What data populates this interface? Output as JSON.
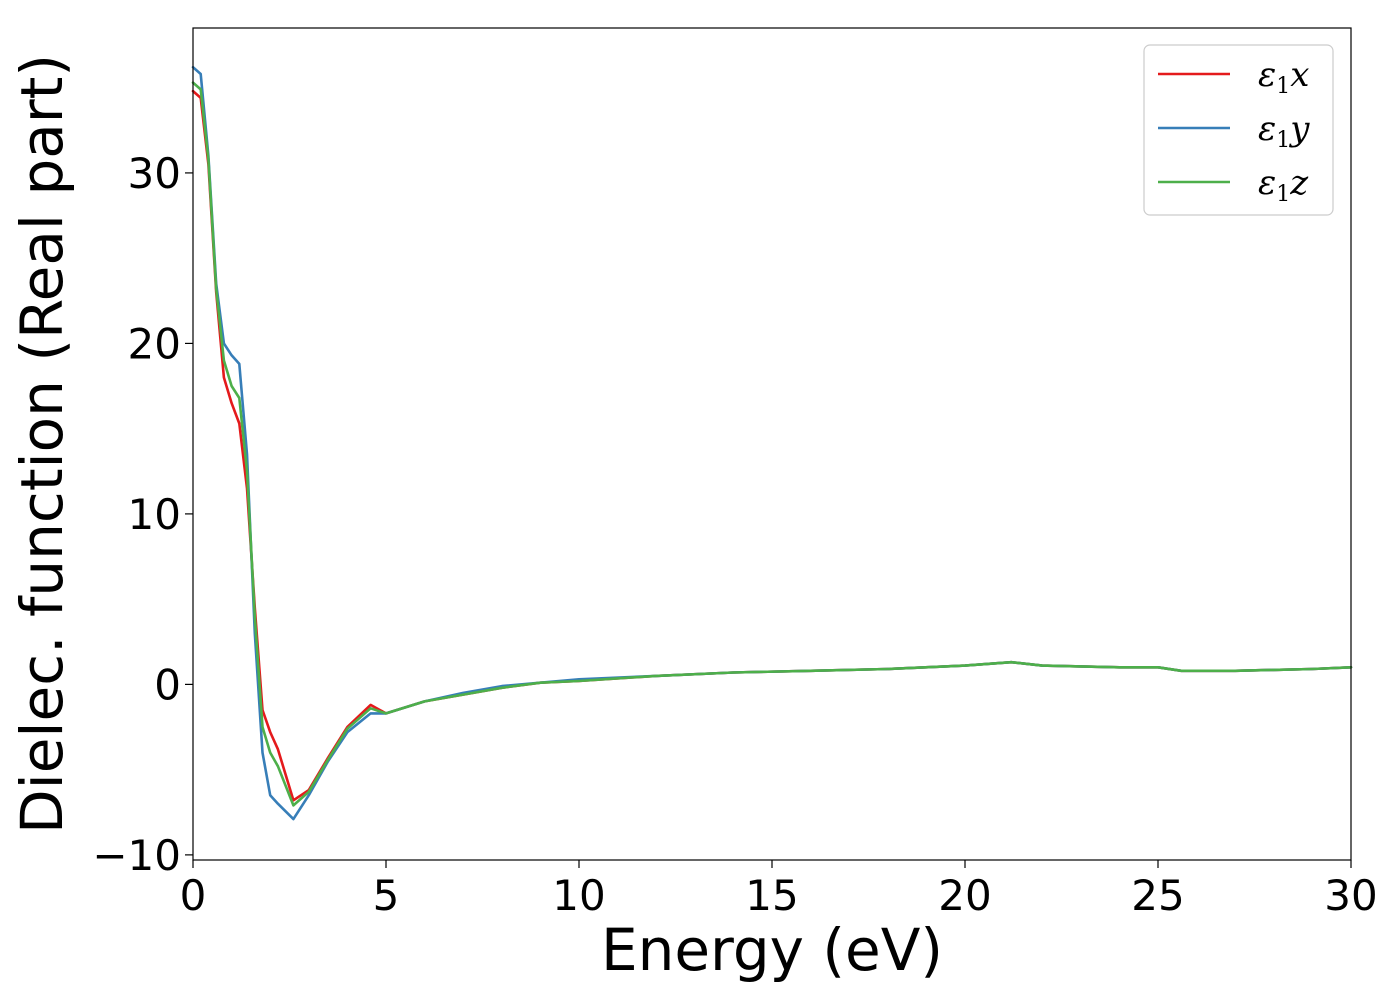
{
  "chart_data": {
    "type": "line",
    "xlabel": "Energy (eV)",
    "ylabel": "Dielec. function (Real part)",
    "xlim": [
      0,
      30
    ],
    "ylim": [
      -10.3,
      38.5
    ],
    "xticks": [
      0,
      5,
      10,
      15,
      20,
      25,
      30
    ],
    "yticks": [
      -10,
      0,
      10,
      20,
      30
    ],
    "xtick_labels": [
      "0",
      "5",
      "10",
      "15",
      "20",
      "25",
      "30"
    ],
    "ytick_labels": [
      "−10",
      "0",
      "10",
      "20",
      "30"
    ],
    "grid": false,
    "legend_position": "top-right",
    "series": [
      {
        "name": "ε₁x",
        "legend_base": "ε",
        "legend_sub": "1",
        "legend_var": "x",
        "color": "#e41a1c",
        "x": [
          0,
          0.2,
          0.4,
          0.6,
          0.8,
          1.0,
          1.2,
          1.4,
          1.6,
          1.8,
          2.0,
          2.2,
          2.6,
          3.0,
          3.5,
          4.0,
          4.6,
          5.0,
          6,
          7,
          8,
          9,
          10,
          12,
          14,
          16,
          18,
          20,
          21.2,
          22,
          24,
          25,
          25.6,
          27,
          28,
          29,
          30
        ],
        "y": [
          34.8,
          34.4,
          30.5,
          23.0,
          18.0,
          16.5,
          15.3,
          11.5,
          4.5,
          -1.5,
          -2.8,
          -3.8,
          -6.8,
          -6.2,
          -4.3,
          -2.5,
          -1.2,
          -1.7,
          -1.0,
          -0.6,
          -0.2,
          0.1,
          0.2,
          0.5,
          0.7,
          0.8,
          0.9,
          1.1,
          1.3,
          1.1,
          1.0,
          1.0,
          0.8,
          0.8,
          0.85,
          0.9,
          1.0
        ]
      },
      {
        "name": "ε₁y",
        "legend_base": "ε",
        "legend_sub": "1",
        "legend_var": "y",
        "color": "#377eb8",
        "x": [
          0,
          0.2,
          0.4,
          0.6,
          0.8,
          1.0,
          1.2,
          1.4,
          1.6,
          1.8,
          2.0,
          2.2,
          2.6,
          3.0,
          3.5,
          4.0,
          4.6,
          5.0,
          6,
          7,
          8,
          9,
          10,
          12,
          14,
          16,
          18,
          20,
          21.2,
          22,
          24,
          25,
          25.6,
          27,
          28,
          29,
          30
        ],
        "y": [
          36.2,
          35.8,
          31.0,
          23.5,
          20.0,
          19.3,
          18.8,
          13.5,
          3.0,
          -4.0,
          -6.5,
          -7.0,
          -7.9,
          -6.5,
          -4.5,
          -2.8,
          -1.7,
          -1.7,
          -1.0,
          -0.5,
          -0.1,
          0.1,
          0.3,
          0.5,
          0.7,
          0.8,
          0.9,
          1.1,
          1.3,
          1.1,
          1.0,
          1.0,
          0.8,
          0.8,
          0.85,
          0.9,
          1.0
        ]
      },
      {
        "name": "ε₁z",
        "legend_base": "ε",
        "legend_sub": "1",
        "legend_var": "z",
        "color": "#4daf4a",
        "x": [
          0,
          0.2,
          0.4,
          0.6,
          0.8,
          1.0,
          1.2,
          1.4,
          1.6,
          1.8,
          2.0,
          2.2,
          2.6,
          3.0,
          3.5,
          4.0,
          4.6,
          5.0,
          6,
          7,
          8,
          9,
          10,
          12,
          14,
          16,
          18,
          20,
          21.2,
          22,
          24,
          25,
          25.6,
          27,
          28,
          29,
          30
        ],
        "y": [
          35.3,
          34.9,
          30.8,
          23.2,
          19.0,
          17.5,
          16.8,
          12.5,
          4.0,
          -2.5,
          -4.0,
          -4.8,
          -7.1,
          -6.3,
          -4.4,
          -2.6,
          -1.4,
          -1.7,
          -1.0,
          -0.6,
          -0.2,
          0.1,
          0.2,
          0.5,
          0.7,
          0.8,
          0.9,
          1.1,
          1.3,
          1.1,
          1.0,
          1.0,
          0.8,
          0.8,
          0.85,
          0.9,
          1.0
        ]
      }
    ]
  }
}
